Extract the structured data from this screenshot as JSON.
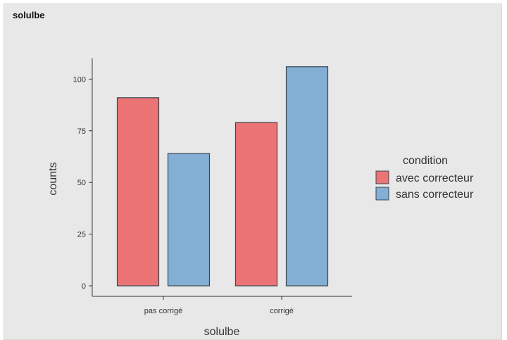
{
  "panel": {
    "title": "solulbe"
  },
  "chart_data": {
    "type": "bar",
    "categories": [
      "pas corrigé",
      "corrigé"
    ],
    "series": [
      {
        "name": "avec correcteur",
        "values": [
          91,
          79
        ],
        "color": "#ec7474"
      },
      {
        "name": "sans correcteur",
        "values": [
          64,
          106
        ],
        "color": "#82afd3"
      }
    ],
    "xlabel": "solulbe",
    "ylabel": "counts",
    "ylim": [
      0,
      110
    ],
    "yticks": [
      0,
      25,
      50,
      75,
      100
    ],
    "legend_title": "condition",
    "legend_position": "right",
    "grid": false,
    "bar_outline_color": "#3a4650"
  }
}
